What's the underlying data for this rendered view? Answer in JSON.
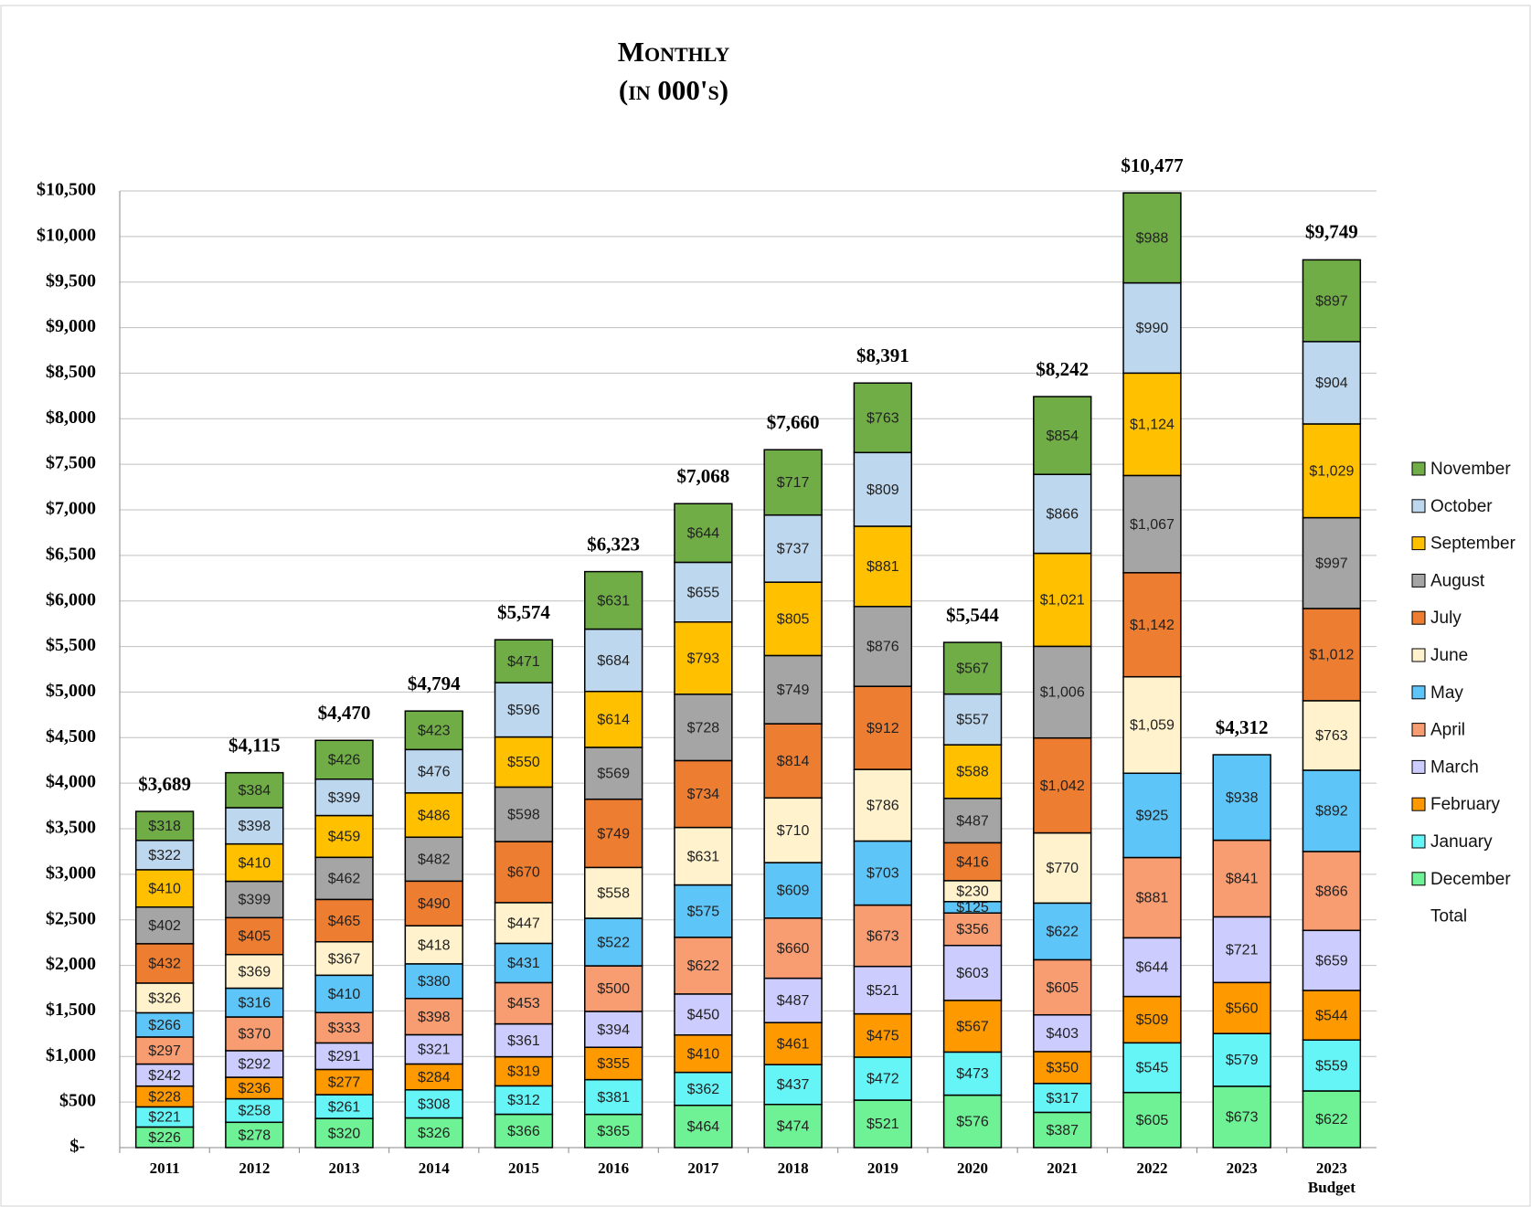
{
  "chart_data": {
    "type": "stacked_bar",
    "title": "Monthly",
    "subtitle": "(in 000's)",
    "categories": [
      "2011",
      "2012",
      "2013",
      "2014",
      "2015",
      "2016",
      "2017",
      "2018",
      "2019",
      "2020",
      "2021",
      "2022",
      "2023",
      "2023 Budget"
    ],
    "ylim": [
      0,
      10500
    ],
    "yticks": [
      {
        "value": 0,
        "label": "$-"
      },
      {
        "value": 500,
        "label": "$500"
      },
      {
        "value": 1000,
        "label": "$1,000"
      },
      {
        "value": 1500,
        "label": "$1,500"
      },
      {
        "value": 2000,
        "label": "$2,000"
      },
      {
        "value": 2500,
        "label": "$2,500"
      },
      {
        "value": 3000,
        "label": "$3,000"
      },
      {
        "value": 3500,
        "label": "$3,500"
      },
      {
        "value": 4000,
        "label": "$4,000"
      },
      {
        "value": 4500,
        "label": "$4,500"
      },
      {
        "value": 5000,
        "label": "$5,000"
      },
      {
        "value": 5500,
        "label": "$5,500"
      },
      {
        "value": 6000,
        "label": "$6,000"
      },
      {
        "value": 6500,
        "label": "$6,500"
      },
      {
        "value": 7000,
        "label": "$7,000"
      },
      {
        "value": 7500,
        "label": "$7,500"
      },
      {
        "value": 8000,
        "label": "$8,000"
      },
      {
        "value": 8500,
        "label": "$8,500"
      },
      {
        "value": 9000,
        "label": "$9,000"
      },
      {
        "value": 9500,
        "label": "$9,500"
      },
      {
        "value": 10000,
        "label": "$10,000"
      },
      {
        "value": 10500,
        "label": "$10,500"
      }
    ],
    "grid": true,
    "legend": "right",
    "series": [
      {
        "name": "December",
        "color": "#6ef295",
        "values": [
          226,
          278,
          320,
          326,
          366,
          365,
          464,
          474,
          521,
          576,
          387,
          605,
          673,
          622
        ],
        "value_labels": [
          "$226",
          "$278",
          "$320",
          "$326",
          "$366",
          "$365",
          "$464",
          "$474",
          "$521",
          "$576",
          "$387",
          "$605",
          "$673",
          "$622"
        ]
      },
      {
        "name": "January",
        "color": "#66f5f7",
        "values": [
          221,
          258,
          261,
          308,
          312,
          381,
          362,
          437,
          472,
          473,
          317,
          545,
          579,
          559
        ],
        "value_labels": [
          "$221",
          "$258",
          "$261",
          "$308",
          "$312",
          "$381",
          "$362",
          "$437",
          "$472",
          "$473",
          "$317",
          "$545",
          "$579",
          "$559"
        ]
      },
      {
        "name": "February",
        "color": "#ff9900",
        "values": [
          228,
          236,
          277,
          284,
          319,
          355,
          410,
          461,
          475,
          567,
          350,
          509,
          560,
          544
        ],
        "value_labels": [
          "$228",
          "$236",
          "$277",
          "$284",
          "$319",
          "$355",
          "$410",
          "$461",
          "$475",
          "$567",
          "$350",
          "$509",
          "$560",
          "$544"
        ]
      },
      {
        "name": "March",
        "color": "#ccccff",
        "values": [
          242,
          292,
          291,
          321,
          361,
          394,
          450,
          487,
          521,
          603,
          403,
          644,
          721,
          659
        ],
        "value_labels": [
          "$242",
          "$292",
          "$291",
          "$321",
          "$361",
          "$394",
          "$450",
          "$487",
          "$521",
          "$603",
          "$403",
          "$644",
          "$721",
          "$659"
        ]
      },
      {
        "name": "April",
        "color": "#f89c72",
        "values": [
          297,
          370,
          333,
          398,
          453,
          500,
          622,
          660,
          673,
          356,
          605,
          881,
          841,
          866
        ],
        "value_labels": [
          "$297",
          "$370",
          "$333",
          "$398",
          "$453",
          "$500",
          "$622",
          "$660",
          "$673",
          "$356",
          "$605",
          "$881",
          "$841",
          "$866"
        ]
      },
      {
        "name": "May",
        "color": "#5ec5f8",
        "values": [
          266,
          316,
          410,
          380,
          431,
          522,
          575,
          609,
          703,
          125,
          622,
          925,
          938,
          892
        ],
        "value_labels": [
          "$266",
          "$316",
          "$410",
          "$380",
          "$431",
          "$522",
          "$575",
          "$609",
          "$703",
          "$125",
          "$622",
          "$925",
          "$938",
          "$892"
        ]
      },
      {
        "name": "June",
        "color": "#fff2cc",
        "values": [
          326,
          369,
          367,
          418,
          447,
          558,
          631,
          710,
          786,
          230,
          770,
          1059,
          null,
          763
        ],
        "value_labels": [
          "$326",
          "$369",
          "$367",
          "$418",
          "$447",
          "$558",
          "$631",
          "$710",
          "$786",
          "$230",
          "$770",
          "$1,059",
          null,
          "$763"
        ]
      },
      {
        "name": "July",
        "color": "#ed7d31",
        "values": [
          432,
          405,
          465,
          490,
          670,
          749,
          734,
          814,
          912,
          416,
          1042,
          1142,
          null,
          1012
        ],
        "value_labels": [
          "$432",
          "$405",
          "$465",
          "$490",
          "$670",
          "$749",
          "$734",
          "$814",
          "$912",
          "$416",
          "$1,042",
          "$1,142",
          null,
          "$1,012"
        ]
      },
      {
        "name": "August",
        "color": "#a5a5a5",
        "values": [
          402,
          399,
          462,
          482,
          598,
          569,
          728,
          749,
          876,
          487,
          1006,
          1067,
          null,
          997
        ],
        "value_labels": [
          "$402",
          "$399",
          "$462",
          "$482",
          "$598",
          "$569",
          "$728",
          "$749",
          "$876",
          "$487",
          "$1,006",
          "$1,067",
          null,
          "$997"
        ]
      },
      {
        "name": "September",
        "color": "#ffc000",
        "values": [
          410,
          410,
          459,
          486,
          550,
          614,
          793,
          805,
          881,
          588,
          1021,
          1124,
          null,
          1029
        ],
        "value_labels": [
          "$410",
          "$410",
          "$459",
          "$486",
          "$550",
          "$614",
          "$793",
          "$805",
          "$881",
          "$588",
          "$1,021",
          "$1,124",
          null,
          "$1,029"
        ]
      },
      {
        "name": "October",
        "color": "#bdd7ee",
        "values": [
          322,
          398,
          399,
          476,
          596,
          684,
          655,
          737,
          809,
          557,
          866,
          990,
          null,
          904
        ],
        "value_labels": [
          "$322",
          "$398",
          "$399",
          "$476",
          "$596",
          "$684",
          "$655",
          "$737",
          "$809",
          "$557",
          "$866",
          "$990",
          null,
          "$904"
        ]
      },
      {
        "name": "November",
        "color": "#70ad47",
        "values": [
          318,
          384,
          426,
          423,
          471,
          631,
          644,
          717,
          763,
          567,
          854,
          988,
          null,
          897
        ],
        "value_labels": [
          "$318",
          "$384",
          "$426",
          "$423",
          "$471",
          "$631",
          "$644",
          "$717",
          "$763",
          "$567",
          "$854",
          "$988",
          null,
          "$897"
        ]
      }
    ],
    "totals": {
      "name": "Total",
      "values": [
        3689,
        4115,
        4470,
        4794,
        5574,
        6323,
        7068,
        7660,
        8391,
        5544,
        8242,
        10477,
        4312,
        9749
      ],
      "value_labels": [
        "$3,689",
        "$4,115",
        "$4,470",
        "$4,794",
        "$5,574",
        "$6,323",
        "$7,068",
        "$7,660",
        "$8,391",
        "$5,544",
        "$8,242",
        "$10,477",
        "$4,312",
        "$9,749"
      ]
    }
  }
}
